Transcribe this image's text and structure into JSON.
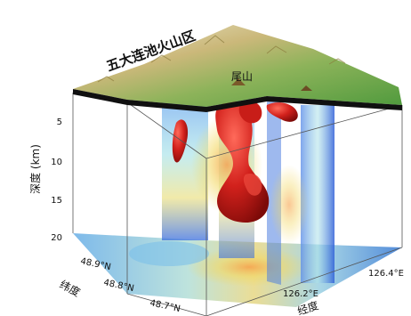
{
  "title": "五大连池火山区",
  "peak_label": "尾山",
  "depth_axis": {
    "label": "深度 (km)",
    "ticks": [
      "5",
      "10",
      "15",
      "20"
    ]
  },
  "lat_axis": {
    "label": "纬度",
    "ticks": [
      "48.9°N",
      "48.8°N",
      "48.7°N"
    ]
  },
  "lon_axis": {
    "label": "经度",
    "ticks": [
      "126.2°E",
      "126.4°E"
    ]
  }
}
